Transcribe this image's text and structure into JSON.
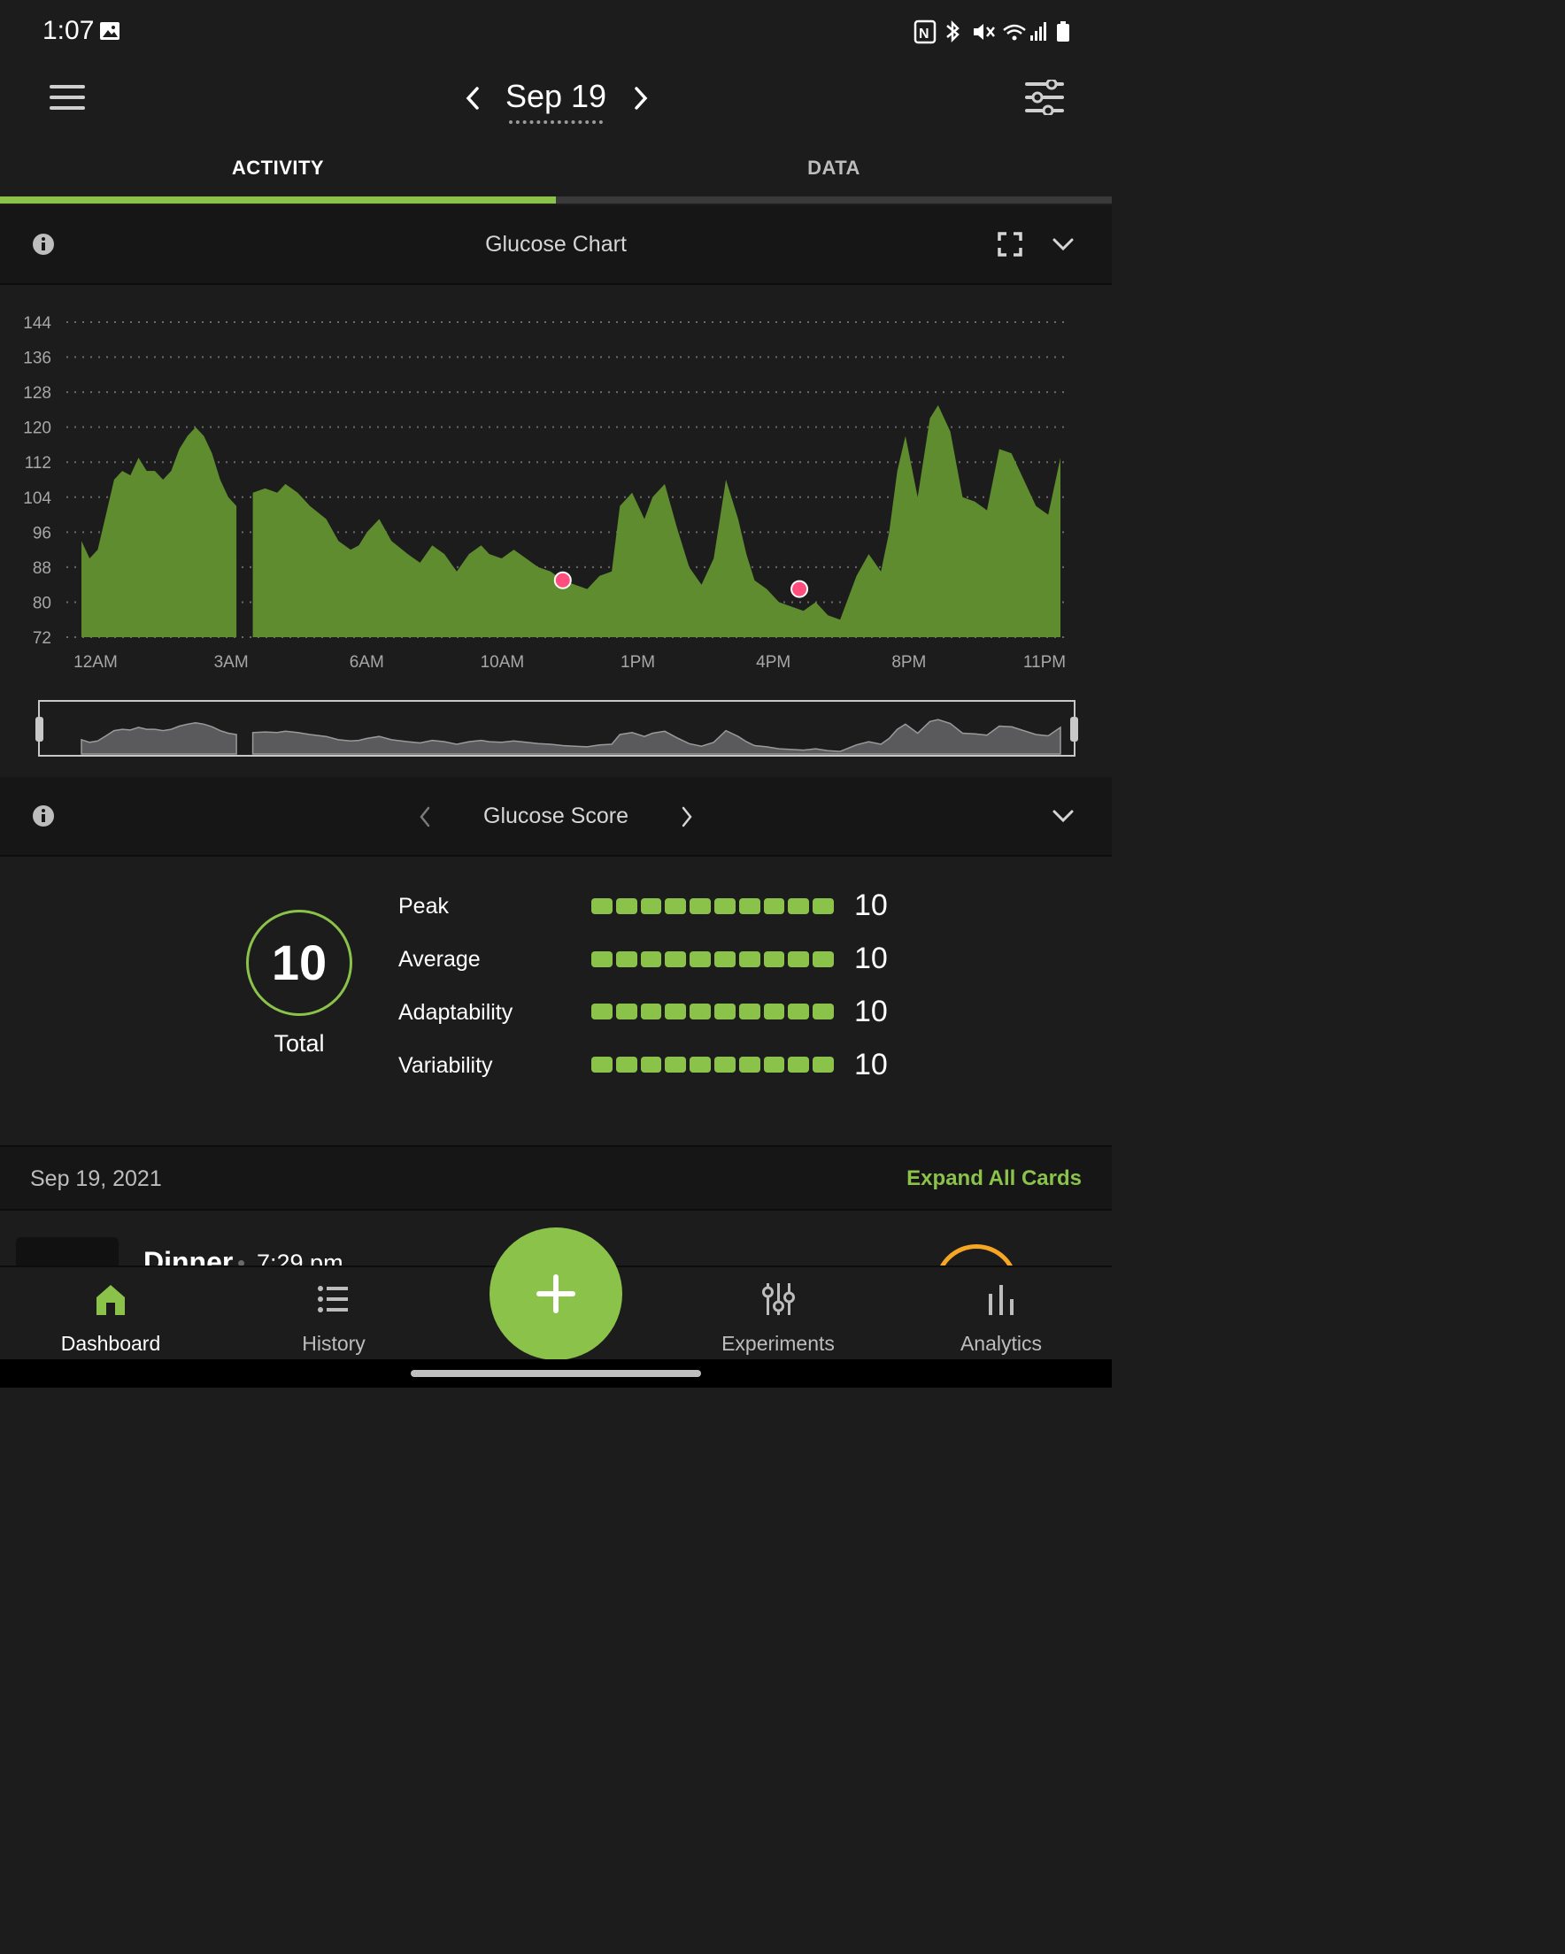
{
  "status": {
    "time": "1:07"
  },
  "header": {
    "date": "Sep 19"
  },
  "tabs": [
    {
      "label": "ACTIVITY",
      "active": true
    },
    {
      "label": "DATA",
      "active": false
    }
  ],
  "glucose_chart": {
    "title": "Glucose Chart"
  },
  "chart_data": {
    "type": "area",
    "title": "Glucose Chart",
    "y_ticks": [
      144,
      136,
      128,
      120,
      112,
      104,
      96,
      88,
      80,
      72
    ],
    "ylim": [
      72,
      144
    ],
    "x_ticks": [
      "12AM",
      "3AM",
      "6AM",
      "10AM",
      "1PM",
      "4PM",
      "8PM",
      "11PM"
    ],
    "xlim_hours": [
      0,
      24
    ],
    "grid": true,
    "fill_color": "#5e8c2f",
    "series": [
      {
        "segments": [
          {
            "x": [
              0.0,
              0.2,
              0.4,
              0.6,
              0.8,
              1.0,
              1.2,
              1.4,
              1.6,
              1.8,
              2.0,
              2.2,
              2.4,
              2.6,
              2.8,
              3.0,
              3.2,
              3.4,
              3.6,
              3.8
            ],
            "y": [
              94,
              90,
              92,
              100,
              108,
              110,
              109,
              113,
              110,
              110,
              108,
              110,
              115,
              118,
              120,
              118,
              114,
              108,
              104,
              102
            ]
          },
          {
            "x": [
              4.2,
              4.5,
              4.8,
              5.0,
              5.3,
              5.6,
              6.0,
              6.3,
              6.6,
              6.8,
              7.0,
              7.3,
              7.6,
              8.0,
              8.3,
              8.6,
              8.9,
              9.2,
              9.5,
              9.8,
              10.0,
              10.3,
              10.6,
              10.9,
              11.2,
              11.5,
              11.8,
              12.1,
              12.4,
              12.7,
              13.0,
              13.2,
              13.5,
              13.8,
              14.0,
              14.3,
              14.6,
              14.9,
              15.2,
              15.5,
              15.8,
              16.1,
              16.3,
              16.5,
              16.8,
              17.1,
              17.4,
              17.7,
              18.0,
              18.3,
              18.6,
              19.0,
              19.3,
              19.6,
              19.8,
              20.0,
              20.2,
              20.5,
              20.8,
              21.0,
              21.3,
              21.6,
              21.9,
              22.2,
              22.5,
              22.8,
              23.1,
              23.4,
              23.7,
              24.0
            ],
            "y": [
              105,
              106,
              105,
              107,
              105,
              102,
              99,
              94,
              92,
              93,
              96,
              99,
              94,
              91,
              89,
              93,
              91,
              87,
              91,
              93,
              91,
              90,
              92,
              90,
              88,
              87,
              85,
              84,
              83,
              86,
              87,
              102,
              105,
              99,
              104,
              107,
              97,
              88,
              84,
              90,
              108,
              99,
              91,
              85,
              83,
              80,
              79,
              78,
              80,
              77,
              76,
              86,
              91,
              87,
              96,
              110,
              118,
              104,
              122,
              125,
              119,
              104,
              103,
              101,
              115,
              114,
              108,
              102,
              100,
              113
            ]
          }
        ]
      }
    ],
    "markers": [
      {
        "x_hours": 11.8,
        "y": 85,
        "color": "#ff4d7d"
      },
      {
        "x_hours": 17.6,
        "y": 83,
        "color": "#ff4d7d"
      }
    ]
  },
  "glucose_score": {
    "title": "Glucose Score",
    "total_value": "10",
    "total_label": "Total",
    "rows": [
      {
        "label": "Peak",
        "value": "10",
        "segments": 10
      },
      {
        "label": "Average",
        "value": "10",
        "segments": 10
      },
      {
        "label": "Adaptability",
        "value": "10",
        "segments": 10
      },
      {
        "label": "Variability",
        "value": "10",
        "segments": 10
      }
    ]
  },
  "feed": {
    "date": "Sep 19, 2021",
    "expand_label": "Expand All Cards",
    "card": {
      "title": "Dinner",
      "time": "7:29 pm"
    }
  },
  "bottom_nav": {
    "items": [
      {
        "label": "Dashboard",
        "active": true
      },
      {
        "label": "History",
        "active": false
      },
      {
        "label": "Experiments",
        "active": false
      },
      {
        "label": "Analytics",
        "active": false
      }
    ]
  },
  "colors": {
    "accent": "#8bc34a",
    "background": "#1c1c1d",
    "marker": "#ff4d7d",
    "card_ring": "#f5a623"
  }
}
